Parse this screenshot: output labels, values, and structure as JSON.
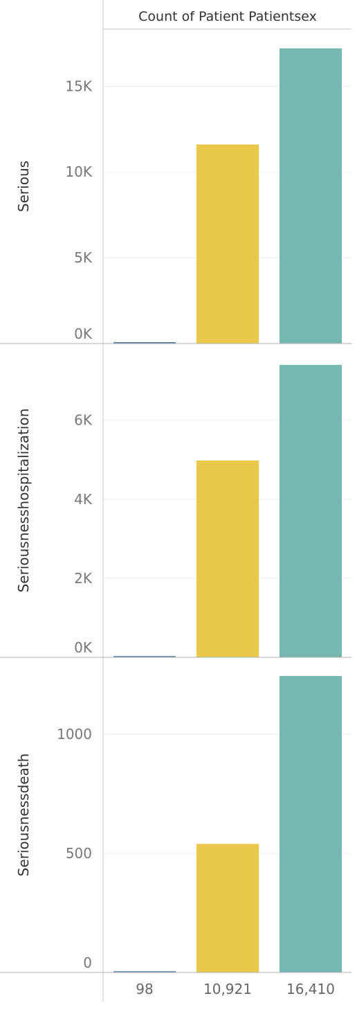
{
  "chart_data": {
    "type": "bar",
    "title": "",
    "column_header": "Count of Patient Patientsex",
    "categories": [
      "98",
      "10,921",
      "16,410"
    ],
    "colors": [
      "#4e79a7",
      "#e9c84b",
      "#76b7b2"
    ],
    "panels": [
      {
        "row_label": "Serious",
        "ylim": [
          0,
          18000
        ],
        "ticks": [
          {
            "value": 0,
            "label": "0K"
          },
          {
            "value": 5000,
            "label": "5K"
          },
          {
            "value": 10000,
            "label": "10K"
          },
          {
            "value": 15000,
            "label": "15K"
          }
        ],
        "values": [
          80,
          11600,
          17200
        ]
      },
      {
        "row_label": "Seriousnesshospitalization",
        "ylim": [
          0,
          7800
        ],
        "ticks": [
          {
            "value": 0,
            "label": "0K"
          },
          {
            "value": 2000,
            "label": "2K"
          },
          {
            "value": 4000,
            "label": "4K"
          },
          {
            "value": 6000,
            "label": "6K"
          }
        ],
        "values": [
          30,
          4980,
          7400
        ]
      },
      {
        "row_label": "Seriousnessdeath",
        "ylim": [
          0,
          1300
        ],
        "ticks": [
          {
            "value": 0,
            "label": "0"
          },
          {
            "value": 500,
            "label": "500"
          },
          {
            "value": 1000,
            "label": "1000"
          }
        ],
        "values": [
          5,
          540,
          1245
        ]
      }
    ],
    "grid": true,
    "legend": "none"
  }
}
